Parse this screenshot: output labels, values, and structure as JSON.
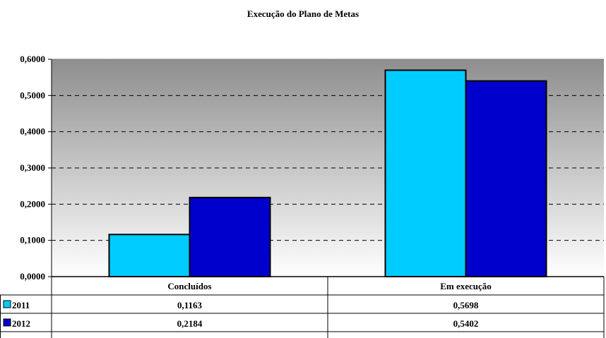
{
  "chart_data": {
    "type": "bar",
    "title": "Execução do Plano de Metas",
    "categories": [
      "Concluídos",
      "Em execução"
    ],
    "series": [
      {
        "name": "2011",
        "values": [
          0.1163,
          0.5698
        ],
        "display": [
          "0,1163",
          "0,5698"
        ],
        "color": "#00ccff"
      },
      {
        "name": "2012",
        "values": [
          0.2184,
          0.5402
        ],
        "display": [
          "0,2184",
          "0,5402"
        ],
        "color": "#0000cc"
      }
    ],
    "ylim": [
      0,
      0.6
    ],
    "yticks": [
      0,
      0.1,
      0.2,
      0.3,
      0.4,
      0.5,
      0.6
    ],
    "ytick_labels": [
      "0,0000",
      "0,1000",
      "0,2000",
      "0,3000",
      "0,4000",
      "0,5000",
      "0,6000"
    ],
    "grid": true,
    "legend": "data-table",
    "xlabel": "",
    "ylabel": ""
  }
}
